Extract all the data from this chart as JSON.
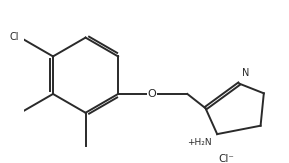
{
  "background": "#ffffff",
  "line_color": "#2a2a2a",
  "line_width": 1.4,
  "font_size_atom": 7.0,
  "font_size_small": 6.5,
  "figsize": [
    2.89,
    1.63
  ],
  "dpi": 100,
  "Cl_label": "Cl",
  "O_label": "O",
  "N_label": "N",
  "NH2_label": "+H₂N",
  "Cl_ion_label": "Cl⁻",
  "background_color": "#ffffff"
}
